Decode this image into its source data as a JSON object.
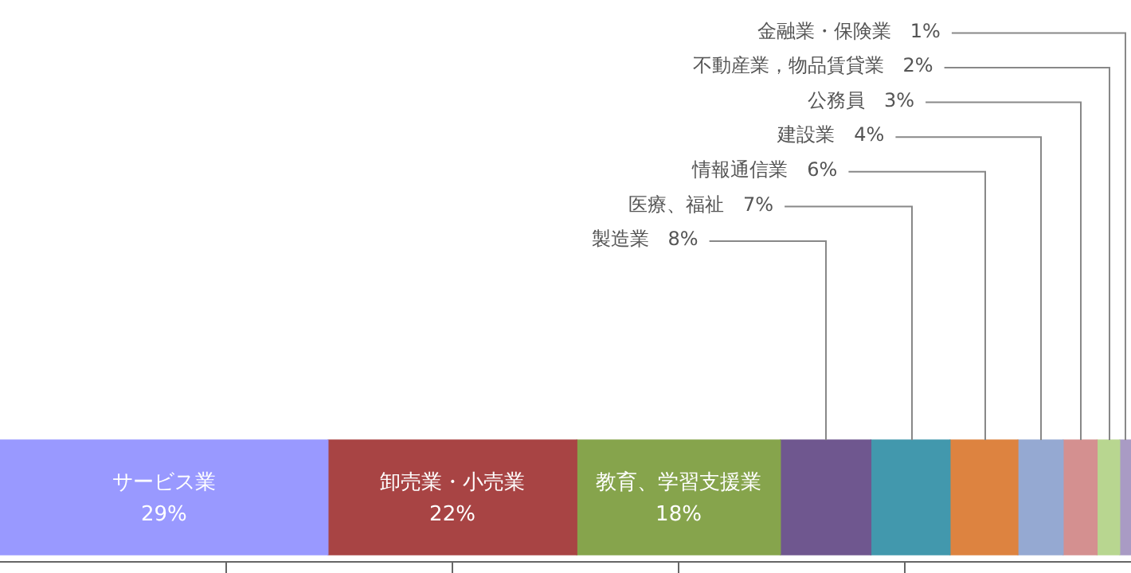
{
  "chart_data": {
    "type": "bar",
    "orientation": "horizontal",
    "stacked": true,
    "categories": [
      null
    ],
    "xlim": [
      0,
      100
    ],
    "xticks": [
      {
        "value": 20,
        "label": null
      },
      {
        "value": 40,
        "label": null
      },
      {
        "value": 60,
        "label": null
      },
      {
        "value": 80,
        "label": null
      }
    ],
    "legend": false,
    "series": [
      {
        "name": "サービス業",
        "color": "#9999ff",
        "values": [
          29
        ],
        "value_labels": [
          "29%"
        ]
      },
      {
        "name": "卸売業・小売業",
        "color": "#a84444",
        "values": [
          22
        ],
        "value_labels": [
          "22%"
        ]
      },
      {
        "name": "教育、学習支援業",
        "color": "#86a44c",
        "values": [
          18
        ],
        "value_labels": [
          "18%"
        ]
      },
      {
        "name": "製造業",
        "color": "#6f578f",
        "values": [
          8
        ],
        "value_labels": [
          "8%"
        ]
      },
      {
        "name": "医療、福祉",
        "color": "#4298ad",
        "values": [
          7
        ],
        "value_labels": [
          "7%"
        ]
      },
      {
        "name": "情報通信業",
        "color": "#dd8340",
        "values": [
          6
        ],
        "value_labels": [
          "6%"
        ]
      },
      {
        "name": "建設業",
        "color": "#95a9d2",
        "values": [
          4
        ],
        "value_labels": [
          "4%"
        ]
      },
      {
        "name": "公務員",
        "color": "#d49090",
        "values": [
          3
        ],
        "value_labels": [
          "3%"
        ]
      },
      {
        "name": "不動産業，物品賃貸業",
        "color": "#b8d690",
        "values": [
          2
        ],
        "value_labels": [
          "2%"
        ]
      },
      {
        "name": "金融業・保険業",
        "color": "#a99bc4",
        "values": [
          1
        ],
        "value_labels": [
          "1%"
        ]
      }
    ]
  }
}
